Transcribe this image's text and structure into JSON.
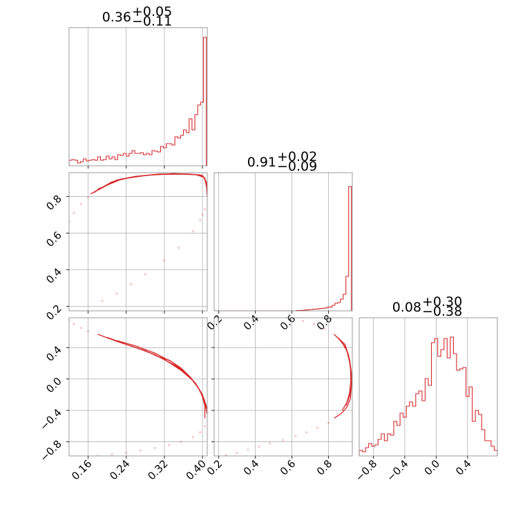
{
  "colors": {
    "series": "#d62728",
    "frame": "#7f7f7f",
    "grid": "#b0b0b0"
  },
  "chart_data": [
    {
      "type": "histogram",
      "panel": "p00",
      "title": {
        "main": "0.36",
        "plus": "+0.05",
        "minus": "−0.11"
      },
      "xlim": [
        0.12,
        0.41
      ],
      "bin_edges": [
        0.12,
        0.126,
        0.132,
        0.138,
        0.144,
        0.15,
        0.156,
        0.162,
        0.168,
        0.174,
        0.18,
        0.186,
        0.192,
        0.198,
        0.204,
        0.21,
        0.216,
        0.222,
        0.228,
        0.234,
        0.24,
        0.246,
        0.252,
        0.258,
        0.264,
        0.27,
        0.276,
        0.282,
        0.288,
        0.294,
        0.3,
        0.306,
        0.312,
        0.318,
        0.324,
        0.33,
        0.336,
        0.342,
        0.348,
        0.354,
        0.36,
        0.366,
        0.372,
        0.378,
        0.384,
        0.39,
        0.396,
        0.402,
        0.408
      ],
      "values": [
        0.04,
        0.045,
        0.04,
        0.02,
        0.03,
        0.05,
        0.035,
        0.04,
        0.045,
        0.04,
        0.065,
        0.04,
        0.045,
        0.07,
        0.05,
        0.065,
        0.045,
        0.08,
        0.075,
        0.09,
        0.07,
        0.09,
        0.11,
        0.09,
        0.09,
        0.095,
        0.08,
        0.09,
        0.08,
        0.11,
        0.105,
        0.1,
        0.14,
        0.13,
        0.16,
        0.16,
        0.15,
        0.21,
        0.2,
        0.22,
        0.26,
        0.24,
        0.34,
        0.26,
        0.37,
        0.44,
        0.46,
        0.93
      ],
      "xticks": [
        0.16,
        0.24,
        0.32,
        0.4
      ]
    },
    {
      "type": "contour",
      "panel": "p10",
      "xlim": [
        0.12,
        0.41
      ],
      "ylim": [
        0.175,
        0.93
      ],
      "yticks": [
        0.2,
        0.4,
        0.6,
        0.8
      ],
      "ytick_labels": [
        "0.2",
        "0.4",
        "0.6",
        "0.8"
      ],
      "xticks": [
        0.16,
        0.24,
        0.32,
        0.4
      ],
      "curves": [
        [
          [
            0.165,
            0.813
          ],
          [
            0.21,
            0.88
          ],
          [
            0.25,
            0.905
          ],
          [
            0.3,
            0.92
          ],
          [
            0.355,
            0.922
          ],
          [
            0.395,
            0.918
          ],
          [
            0.405,
            0.9
          ],
          [
            0.41,
            0.83
          ]
        ],
        [
          [
            0.17,
            0.82
          ],
          [
            0.22,
            0.89
          ],
          [
            0.26,
            0.91
          ],
          [
            0.31,
            0.923
          ],
          [
            0.37,
            0.923
          ],
          [
            0.4,
            0.915
          ],
          [
            0.408,
            0.88
          ],
          [
            0.41,
            0.8
          ]
        ],
        [
          [
            0.18,
            0.84
          ],
          [
            0.23,
            0.895
          ],
          [
            0.28,
            0.915
          ],
          [
            0.34,
            0.925
          ],
          [
            0.385,
            0.92
          ],
          [
            0.403,
            0.905
          ],
          [
            0.409,
            0.86
          ]
        ]
      ],
      "faint_points": [
        [
          0.12,
          0.66
        ],
        [
          0.13,
          0.71
        ],
        [
          0.145,
          0.76
        ],
        [
          0.16,
          0.795
        ],
        [
          0.175,
          0.825
        ],
        [
          0.32,
          0.45
        ],
        [
          0.28,
          0.375
        ],
        [
          0.25,
          0.32
        ],
        [
          0.22,
          0.27
        ],
        [
          0.19,
          0.23
        ],
        [
          0.38,
          0.61
        ],
        [
          0.395,
          0.67
        ],
        [
          0.405,
          0.73
        ],
        [
          0.35,
          0.52
        ],
        [
          0.4,
          0.7
        ]
      ]
    },
    {
      "type": "histogram",
      "panel": "p11",
      "title": {
        "main": "0.91",
        "plus": "+0.02",
        "minus": "−0.09"
      },
      "xlim": [
        0.175,
        0.93
      ],
      "bin_edges": [
        0.175,
        0.19,
        0.205,
        0.22,
        0.235,
        0.25,
        0.265,
        0.28,
        0.295,
        0.31,
        0.325,
        0.34,
        0.355,
        0.37,
        0.385,
        0.4,
        0.415,
        0.43,
        0.445,
        0.46,
        0.475,
        0.49,
        0.505,
        0.52,
        0.535,
        0.55,
        0.565,
        0.58,
        0.595,
        0.61,
        0.625,
        0.64,
        0.655,
        0.67,
        0.685,
        0.7,
        0.715,
        0.73,
        0.745,
        0.76,
        0.775,
        0.79,
        0.805,
        0.82,
        0.835,
        0.85,
        0.865,
        0.88,
        0.895,
        0.91,
        0.925
      ],
      "values": [
        0,
        0,
        0,
        0,
        0,
        0,
        0,
        0,
        0,
        0,
        0,
        0,
        0,
        0,
        0,
        0,
        0,
        0,
        0,
        0,
        0,
        0,
        0,
        0,
        0,
        0,
        0,
        0,
        0,
        0,
        0.003,
        0.003,
        0.004,
        0.006,
        0.008,
        0.01,
        0.012,
        0.013,
        0.016,
        0.018,
        0.02,
        0.026,
        0.028,
        0.04,
        0.055,
        0.06,
        0.085,
        0.12,
        0.25,
        0.9
      ],
      "xticks": [
        0.2,
        0.4,
        0.6,
        0.8
      ],
      "xtick_labels": [
        "0.2",
        "0.4",
        "0.6",
        "0.8"
      ]
    },
    {
      "type": "contour",
      "panel": "p20",
      "xlim": [
        0.12,
        0.41
      ],
      "ylim": [
        -0.98,
        0.78
      ],
      "yticks": [
        -0.8,
        -0.4,
        0.0,
        0.4
      ],
      "ytick_labels": [
        "−0.8",
        "−0.4",
        "0.0",
        "0.4"
      ],
      "xticks": [
        0.16,
        0.24,
        0.32,
        0.4
      ],
      "xtick_labels": [
        "0.16",
        "0.24",
        "0.32",
        "0.40"
      ],
      "curves": [
        [
          [
            0.18,
            0.57
          ],
          [
            0.22,
            0.48
          ],
          [
            0.26,
            0.4
          ],
          [
            0.3,
            0.31
          ],
          [
            0.34,
            0.18
          ],
          [
            0.37,
            0.05
          ],
          [
            0.39,
            -0.1
          ],
          [
            0.4,
            -0.22
          ],
          [
            0.405,
            -0.35
          ],
          [
            0.405,
            -0.5
          ]
        ],
        [
          [
            0.2,
            0.53
          ],
          [
            0.24,
            0.44
          ],
          [
            0.28,
            0.36
          ],
          [
            0.32,
            0.25
          ],
          [
            0.355,
            0.11
          ],
          [
            0.38,
            -0.02
          ],
          [
            0.395,
            -0.15
          ],
          [
            0.405,
            -0.3
          ],
          [
            0.41,
            -0.45
          ]
        ],
        [
          [
            0.22,
            0.49
          ],
          [
            0.26,
            0.42
          ],
          [
            0.3,
            0.33
          ],
          [
            0.335,
            0.22
          ],
          [
            0.36,
            0.1
          ],
          [
            0.385,
            -0.05
          ],
          [
            0.4,
            -0.2
          ],
          [
            0.41,
            -0.38
          ]
        ],
        [
          [
            0.3,
            0.3
          ],
          [
            0.33,
            0.24
          ],
          [
            0.355,
            0.14
          ],
          [
            0.375,
            0.02
          ],
          [
            0.392,
            -0.12
          ],
          [
            0.405,
            -0.28
          ]
        ]
      ],
      "faint_points": [
        [
          0.12,
          0.75
        ],
        [
          0.13,
          0.7
        ],
        [
          0.145,
          0.65
        ],
        [
          0.16,
          0.61
        ],
        [
          0.405,
          -0.6
        ],
        [
          0.395,
          -0.68
        ],
        [
          0.38,
          -0.74
        ],
        [
          0.355,
          -0.8
        ],
        [
          0.33,
          -0.84
        ],
        [
          0.3,
          -0.88
        ],
        [
          0.27,
          -0.91
        ],
        [
          0.24,
          -0.94
        ],
        [
          0.21,
          -0.96
        ],
        [
          0.18,
          -0.98
        ]
      ]
    },
    {
      "type": "contour",
      "panel": "p21",
      "xlim": [
        0.175,
        0.93
      ],
      "ylim": [
        -0.98,
        0.78
      ],
      "xticks": [
        0.2,
        0.4,
        0.6,
        0.8
      ],
      "xtick_labels": [
        "0.2",
        "0.4",
        "0.6",
        "0.8"
      ],
      "yticks": [
        -0.8,
        -0.4,
        0.0,
        0.4
      ],
      "curves": [
        [
          [
            0.83,
            0.57
          ],
          [
            0.87,
            0.48
          ],
          [
            0.9,
            0.36
          ],
          [
            0.915,
            0.22
          ],
          [
            0.925,
            0.05
          ],
          [
            0.925,
            -0.1
          ],
          [
            0.92,
            -0.25
          ],
          [
            0.9,
            -0.36
          ],
          [
            0.87,
            -0.44
          ],
          [
            0.83,
            -0.5
          ]
        ],
        [
          [
            0.85,
            0.53
          ],
          [
            0.89,
            0.44
          ],
          [
            0.91,
            0.3
          ],
          [
            0.92,
            0.14
          ],
          [
            0.922,
            -0.02
          ],
          [
            0.915,
            -0.18
          ],
          [
            0.9,
            -0.3
          ],
          [
            0.875,
            -0.4
          ]
        ],
        [
          [
            0.86,
            0.5
          ],
          [
            0.895,
            0.4
          ],
          [
            0.915,
            0.25
          ],
          [
            0.925,
            0.08
          ],
          [
            0.925,
            -0.08
          ],
          [
            0.915,
            -0.22
          ],
          [
            0.895,
            -0.34
          ]
        ]
      ],
      "faint_points": [
        [
          0.58,
          0.78
        ],
        [
          0.66,
          0.74
        ],
        [
          0.72,
          0.7
        ],
        [
          0.78,
          0.64
        ],
        [
          0.8,
          -0.56
        ],
        [
          0.74,
          -0.62
        ],
        [
          0.68,
          -0.68
        ],
        [
          0.62,
          -0.73
        ],
        [
          0.55,
          -0.78
        ],
        [
          0.48,
          -0.82
        ],
        [
          0.42,
          -0.86
        ],
        [
          0.36,
          -0.9
        ],
        [
          0.3,
          -0.94
        ],
        [
          0.24,
          -0.97
        ]
      ]
    },
    {
      "type": "histogram",
      "panel": "p22",
      "title": {
        "main": "0.08",
        "plus": "+0.30",
        "minus": "−0.38"
      },
      "xlim": [
        -0.98,
        0.78
      ],
      "bin_edges": [
        -0.98,
        -0.94,
        -0.9,
        -0.86,
        -0.82,
        -0.78,
        -0.74,
        -0.7,
        -0.66,
        -0.62,
        -0.58,
        -0.54,
        -0.5,
        -0.46,
        -0.42,
        -0.38,
        -0.34,
        -0.3,
        -0.26,
        -0.22,
        -0.18,
        -0.14,
        -0.1,
        -0.06,
        -0.02,
        0.02,
        0.06,
        0.1,
        0.14,
        0.18,
        0.22,
        0.26,
        0.3,
        0.34,
        0.38,
        0.42,
        0.46,
        0.5,
        0.54,
        0.58,
        0.62,
        0.66,
        0.7,
        0.74,
        0.78
      ],
      "values": [
        0.04,
        0.03,
        0.06,
        0.09,
        0.07,
        0.08,
        0.12,
        0.16,
        0.11,
        0.16,
        0.15,
        0.25,
        0.22,
        0.31,
        0.28,
        0.36,
        0.39,
        0.36,
        0.45,
        0.47,
        0.4,
        0.56,
        0.51,
        0.82,
        0.85,
        0.72,
        0.77,
        0.85,
        0.71,
        0.86,
        0.74,
        0.62,
        0.63,
        0.64,
        0.43,
        0.5,
        0.25,
        0.33,
        0.3,
        0.19,
        0.11,
        0.11,
        0.07,
        0.04
      ],
      "xticks": [
        -0.8,
        -0.4,
        0.0,
        0.4
      ],
      "xtick_labels": [
        "−0.8",
        "−0.4",
        "0.0",
        "0.4"
      ]
    }
  ]
}
